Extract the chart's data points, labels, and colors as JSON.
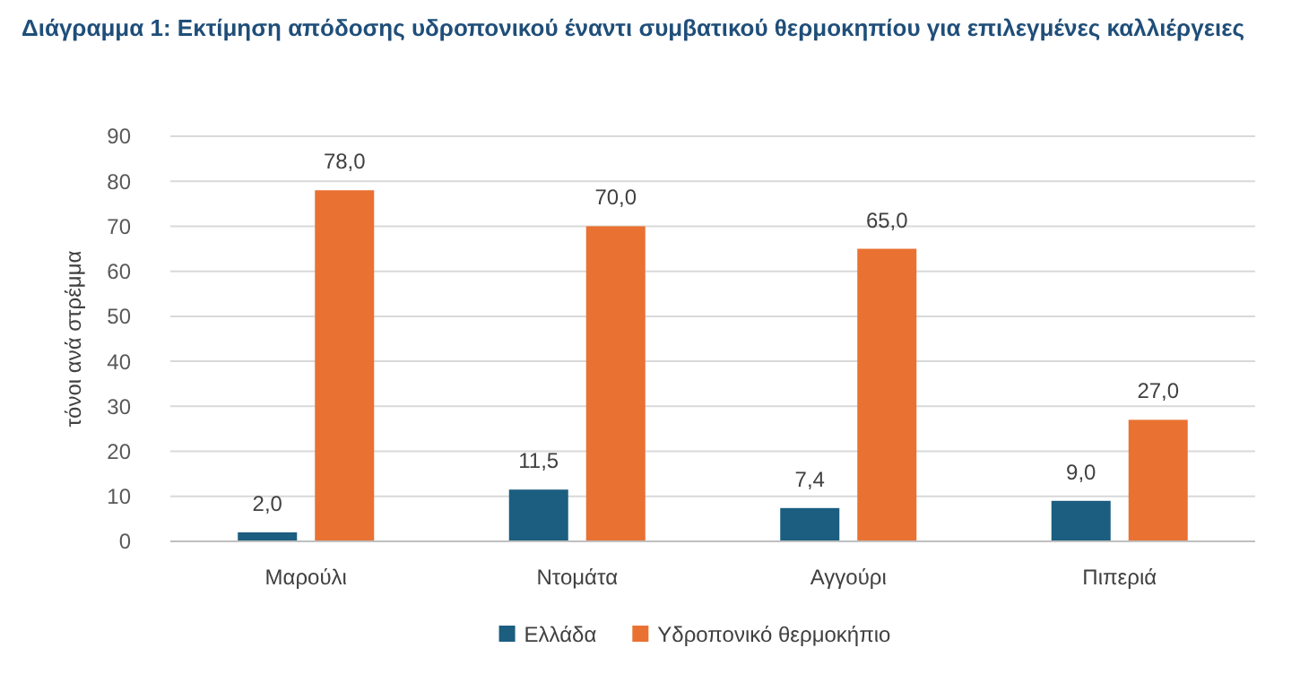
{
  "chart_data": {
    "type": "bar",
    "title": "Διάγραμμα 1: Εκτίμηση απόδοσης υδροπονικού έναντι συμβατικού θερμοκηπίου για επιλεγμένες καλλιέργειες",
    "ylabel": "τόνοι ανά στρέμμα",
    "categories": [
      "Μαρούλι",
      "Ντομάτα",
      "Αγγούρι",
      "Πιπεριά"
    ],
    "series": [
      {
        "name": "Ελλάδα",
        "color": "#1b5e80",
        "values": [
          2.0,
          11.5,
          7.4,
          9.0
        ],
        "value_labels": [
          "2,0",
          "11,5",
          "7,4",
          "9,0"
        ]
      },
      {
        "name": "Υδροπονικό θερμοκήπιο",
        "color": "#e97132",
        "values": [
          78.0,
          70.0,
          65.0,
          27.0
        ],
        "value_labels": [
          "78,0",
          "70,0",
          "65,0",
          "27,0"
        ]
      }
    ],
    "ylim": [
      0,
      90
    ],
    "yticks": [
      0,
      10,
      20,
      30,
      40,
      50,
      60,
      70,
      80,
      90
    ],
    "grid": "y",
    "legend": "bottom"
  }
}
